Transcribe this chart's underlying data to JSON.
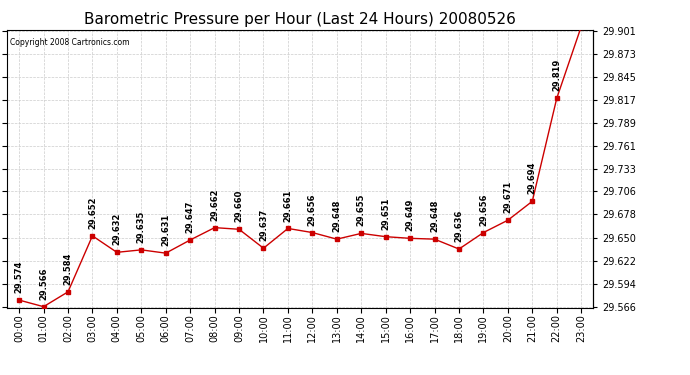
{
  "title": "Barometric Pressure per Hour (Last 24 Hours) 20080526",
  "copyright": "Copyright 2008 Cartronics.com",
  "hours": [
    "00:00",
    "01:00",
    "02:00",
    "03:00",
    "04:00",
    "05:00",
    "06:00",
    "07:00",
    "08:00",
    "09:00",
    "10:00",
    "11:00",
    "12:00",
    "13:00",
    "14:00",
    "15:00",
    "16:00",
    "17:00",
    "18:00",
    "19:00",
    "20:00",
    "21:00",
    "22:00",
    "23:00"
  ],
  "values": [
    29.574,
    29.566,
    29.584,
    29.652,
    29.632,
    29.635,
    29.631,
    29.647,
    29.662,
    29.66,
    29.637,
    29.661,
    29.656,
    29.648,
    29.655,
    29.651,
    29.649,
    29.648,
    29.636,
    29.656,
    29.671,
    29.694,
    29.819,
    29.906
  ],
  "yticks": [
    29.566,
    29.594,
    29.622,
    29.65,
    29.678,
    29.706,
    29.733,
    29.761,
    29.789,
    29.817,
    29.845,
    29.873,
    29.901
  ],
  "line_color": "#cc0000",
  "bg_color": "#ffffff",
  "grid_color": "#cccccc",
  "title_fontsize": 11,
  "tick_fontsize": 7,
  "annot_fontsize": 6
}
